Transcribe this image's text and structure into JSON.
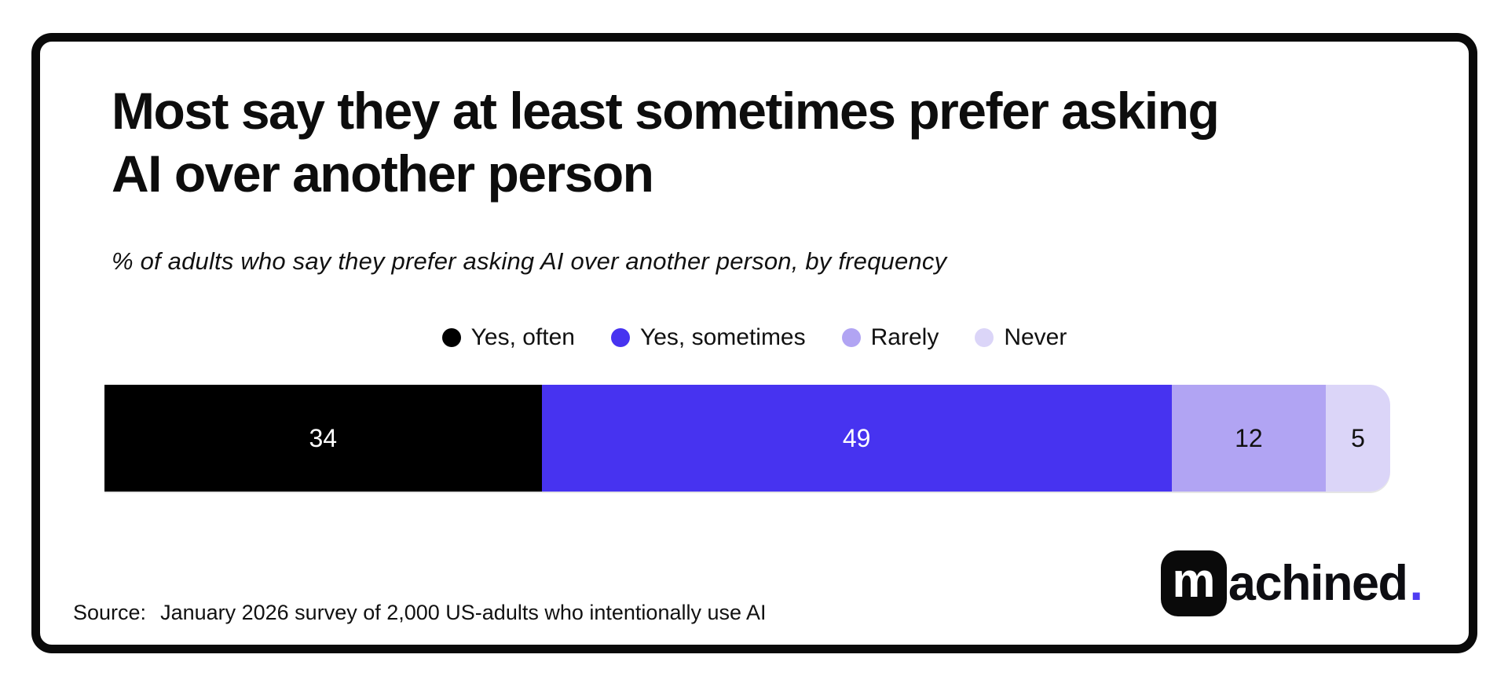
{
  "title": "Most say they at least sometimes prefer asking AI over another person",
  "subtitle": "% of adults who say they prefer asking AI over another person, by frequency",
  "legend": {
    "items": [
      {
        "label": "Yes, often",
        "color": "#000000"
      },
      {
        "label": "Yes, sometimes",
        "color": "#4733f0"
      },
      {
        "label": "Rarely",
        "color": "#b1a4f3"
      },
      {
        "label": "Never",
        "color": "#dbd5f8"
      }
    ]
  },
  "chart_data": {
    "type": "bar",
    "orientation": "horizontal",
    "stacked": true,
    "unit": "%",
    "title": "Most say they at least sometimes prefer asking AI over another person",
    "subtitle": "% of adults who say they prefer asking AI over another person, by frequency",
    "categories": [
      "Yes, often",
      "Yes, sometimes",
      "Rarely",
      "Never"
    ],
    "values": [
      34,
      49,
      12,
      5
    ],
    "segment_colors": [
      "#000000",
      "#4733f0",
      "#b1a4f3",
      "#dbd5f8"
    ],
    "value_label_colors": [
      "#ffffff",
      "#ffffff",
      "#111111",
      "#111111"
    ],
    "xlim": [
      0,
      100
    ],
    "grid": false,
    "legend_position": "top-center",
    "bar_end_style": "right-rounded"
  },
  "source": {
    "label": "Source:",
    "text": "January 2026 survey of 2,000 US-adults who intentionally use AI"
  },
  "logo": {
    "boxed_letter": "m",
    "wordmark": "achined",
    "period": ".",
    "accent_color": "#4f3cf2"
  }
}
